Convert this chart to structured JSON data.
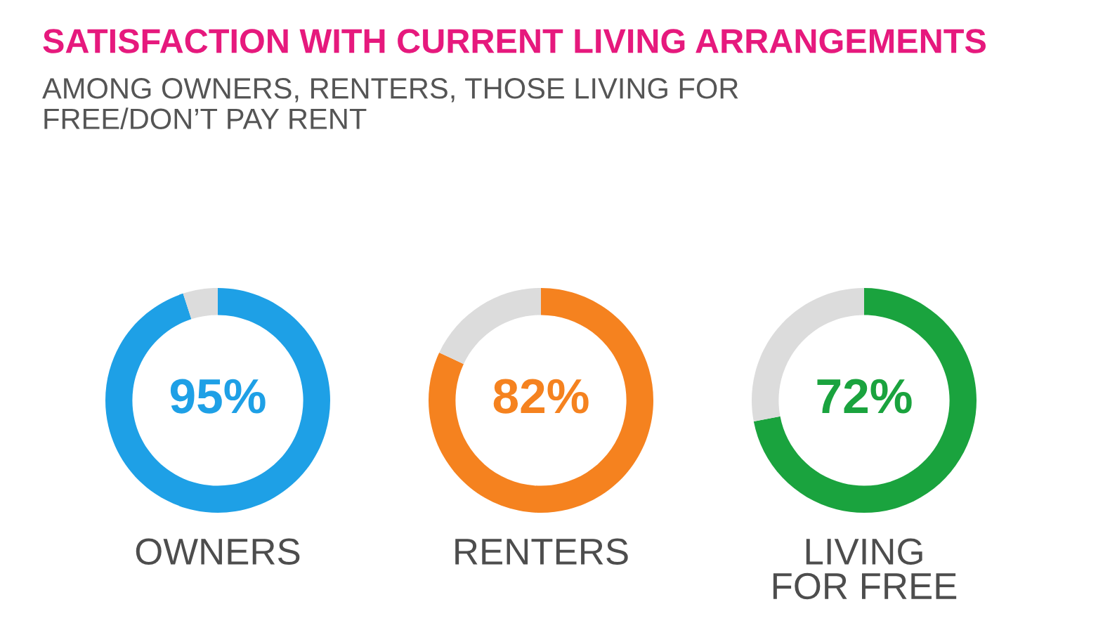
{
  "chart_data": [
    {
      "type": "donut",
      "title": "SATISFACTION WITH CURRENT LIVING ARRANGEMENTS",
      "subtitle": "AMONG OWNERS, RENTERS, THOSE LIVING FOR\nFREE/DON’T PAY RENT",
      "categories": [
        "OWNERS",
        null
      ],
      "values": [
        95,
        5
      ],
      "colors": [
        "#1ea0e6",
        "#dcdcdc"
      ],
      "value_labels": [
        "95%",
        null
      ]
    },
    {
      "type": "donut",
      "categories": [
        "RENTERS",
        null
      ],
      "values": [
        82,
        18
      ],
      "colors": [
        "#f5821f",
        "#dcdcdc"
      ],
      "value_labels": [
        "82%",
        null
      ]
    },
    {
      "type": "donut",
      "categories": [
        "LIVING\nFOR FREE",
        null
      ],
      "values": [
        72,
        28
      ],
      "colors": [
        "#1aa33e",
        "#dcdcdc"
      ],
      "value_labels": [
        "72%",
        null
      ]
    }
  ]
}
